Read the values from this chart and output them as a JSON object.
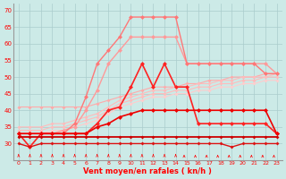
{
  "x": [
    0,
    1,
    2,
    3,
    4,
    5,
    6,
    7,
    8,
    9,
    10,
    11,
    12,
    13,
    14,
    15,
    16,
    17,
    18,
    19,
    20,
    21,
    22,
    23
  ],
  "series": [
    {
      "values": [
        41,
        41,
        41,
        41,
        41,
        41,
        41,
        42,
        43,
        44,
        45,
        46,
        47,
        47,
        47,
        48,
        48,
        49,
        49,
        50,
        50,
        50,
        51,
        51
      ],
      "color": "#ffaaaa",
      "lw": 0.8,
      "ms": 2.0
    },
    {
      "values": [
        35,
        35,
        35,
        36,
        36,
        37,
        38,
        39,
        41,
        43,
        44,
        45,
        46,
        46,
        47,
        47,
        48,
        48,
        49,
        49,
        50,
        50,
        50,
        51
      ],
      "color": "#ffbbbb",
      "lw": 0.8,
      "ms": 2.0
    },
    {
      "values": [
        34,
        34,
        34,
        35,
        35,
        36,
        37,
        38,
        40,
        42,
        43,
        44,
        45,
        45,
        46,
        46,
        47,
        47,
        48,
        48,
        49,
        49,
        50,
        50
      ],
      "color": "#ffbbbb",
      "lw": 0.8,
      "ms": 2.0
    },
    {
      "values": [
        33,
        33,
        33,
        34,
        34,
        35,
        36,
        37,
        39,
        41,
        42,
        43,
        44,
        44,
        45,
        45,
        46,
        46,
        47,
        47,
        48,
        48,
        49,
        49
      ],
      "color": "#ffcccc",
      "lw": 0.8,
      "ms": 2.0
    },
    {
      "values": [
        33,
        33,
        33,
        33,
        34,
        35,
        40,
        46,
        54,
        58,
        62,
        62,
        62,
        62,
        62,
        54,
        54,
        54,
        54,
        54,
        54,
        54,
        54,
        51
      ],
      "color": "#ff9999",
      "lw": 1.0,
      "ms": 2.5
    },
    {
      "values": [
        33,
        33,
        33,
        33,
        33,
        36,
        44,
        54,
        58,
        62,
        68,
        68,
        68,
        68,
        68,
        54,
        54,
        54,
        54,
        54,
        54,
        54,
        51,
        51
      ],
      "color": "#ff7777",
      "lw": 1.0,
      "ms": 2.5
    },
    {
      "values": [
        33,
        29,
        33,
        33,
        33,
        33,
        33,
        36,
        40,
        41,
        47,
        54,
        47,
        54,
        47,
        47,
        36,
        36,
        36,
        36,
        36,
        36,
        36,
        33
      ],
      "color": "#ff2222",
      "lw": 1.2,
      "ms": 2.5
    },
    {
      "values": [
        33,
        33,
        33,
        33,
        33,
        33,
        33,
        35,
        36,
        38,
        39,
        40,
        40,
        40,
        40,
        40,
        40,
        40,
        40,
        40,
        40,
        40,
        40,
        33
      ],
      "color": "#ee0000",
      "lw": 1.2,
      "ms": 2.5
    },
    {
      "values": [
        32,
        32,
        32,
        32,
        32,
        32,
        32,
        32,
        32,
        32,
        32,
        32,
        32,
        32,
        32,
        32,
        32,
        32,
        32,
        32,
        32,
        32,
        32,
        32
      ],
      "color": "#cc0000",
      "lw": 1.3,
      "ms": 2.0
    },
    {
      "values": [
        30,
        29,
        30,
        30,
        30,
        30,
        30,
        30,
        30,
        30,
        30,
        30,
        30,
        30,
        30,
        30,
        30,
        30,
        30,
        29,
        30,
        30,
        30,
        30
      ],
      "color": "#dd1111",
      "lw": 1.0,
      "ms": 2.0
    }
  ],
  "arrow_directions": [
    90,
    90,
    90,
    90,
    90,
    90,
    90,
    90,
    90,
    90,
    90,
    90,
    90,
    90,
    90,
    45,
    45,
    45,
    45,
    45,
    45,
    45,
    45,
    45
  ],
  "ylim": [
    25,
    72
  ],
  "yticks": [
    30,
    35,
    40,
    45,
    50,
    55,
    60,
    65,
    70
  ],
  "ytick_labels": [
    "30",
    "35",
    "40",
    "45",
    "50",
    "55",
    "60",
    "65",
    "70"
  ],
  "xlabel": "Vent moyen/en rafales ( kn/h )",
  "bg_color": "#cceae7",
  "grid_color": "#aacccc",
  "tick_color": "#ff0000",
  "label_color": "#ff0000"
}
